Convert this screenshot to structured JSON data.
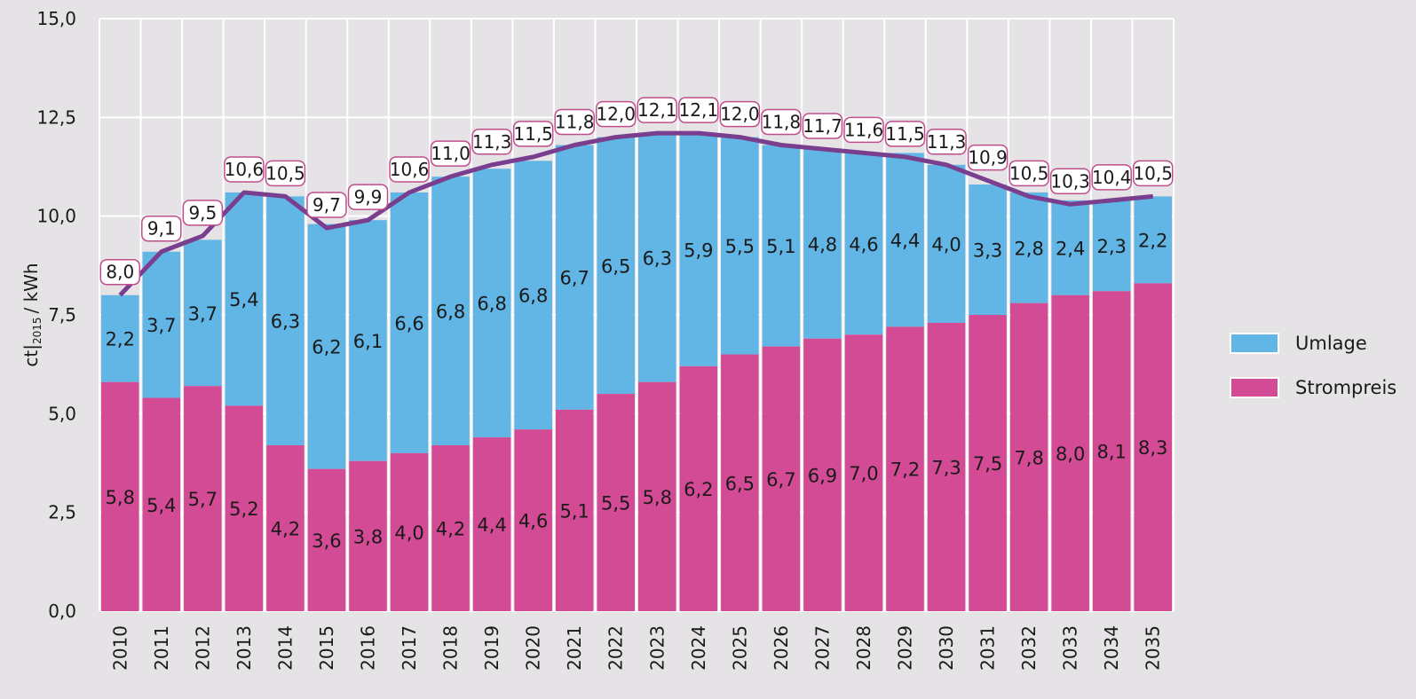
{
  "chart_data": {
    "type": "bar",
    "stacked": true,
    "ylabel": "ct|2015 / kWh",
    "ylabel_main": "ct|",
    "ylabel_sub": "2015",
    "ylabel_unit": "/ kWh",
    "ylim": [
      0,
      15
    ],
    "yticks": [
      "0,0",
      "2,5",
      "5,0",
      "7,5",
      "10,0",
      "12,5",
      "15,0"
    ],
    "categories": [
      "2010",
      "2011",
      "2012",
      "2013",
      "2014",
      "2015",
      "2016",
      "2017",
      "2018",
      "2019",
      "2020",
      "2021",
      "2022",
      "2023",
      "2024",
      "2025",
      "2026",
      "2027",
      "2028",
      "2029",
      "2030",
      "2031",
      "2032",
      "2033",
      "2034",
      "2035"
    ],
    "series": [
      {
        "name": "Strompreis",
        "color": "#d44b95",
        "values": [
          5.8,
          5.4,
          5.7,
          5.2,
          4.2,
          3.6,
          3.8,
          4.0,
          4.2,
          4.4,
          4.6,
          5.1,
          5.5,
          5.8,
          6.2,
          6.5,
          6.7,
          6.9,
          7.0,
          7.2,
          7.3,
          7.5,
          7.8,
          8.0,
          8.1,
          8.3
        ],
        "labels": [
          "5,8",
          "5,4",
          "5,7",
          "5,2",
          "4,2",
          "3,6",
          "3,8",
          "4,0",
          "4,2",
          "4,4",
          "4,6",
          "5,1",
          "5,5",
          "5,8",
          "6,2",
          "6,5",
          "6,7",
          "6,9",
          "7,0",
          "7,2",
          "7,3",
          "7,5",
          "7,8",
          "8,0",
          "8,1",
          "8,3"
        ]
      },
      {
        "name": "Umlage",
        "color": "#62b6e6",
        "values": [
          2.2,
          3.7,
          3.7,
          5.4,
          6.3,
          6.2,
          6.1,
          6.6,
          6.8,
          6.8,
          6.8,
          6.7,
          6.5,
          6.3,
          5.9,
          5.5,
          5.1,
          4.8,
          4.6,
          4.4,
          4.0,
          3.3,
          2.8,
          2.4,
          2.3,
          2.2
        ],
        "labels": [
          "2,2",
          "3,7",
          "3,7",
          "5,4",
          "6,3",
          "6,2",
          "6,1",
          "6,6",
          "6,8",
          "6,8",
          "6,8",
          "6,7",
          "6,5",
          "6,3",
          "5,9",
          "5,5",
          "5,1",
          "4,8",
          "4,6",
          "4,4",
          "4,0",
          "3,3",
          "2,8",
          "2,4",
          "2,3",
          "2,2"
        ]
      }
    ],
    "totals": {
      "color": "#7a3e8e",
      "values": [
        8.0,
        9.1,
        9.5,
        10.6,
        10.5,
        9.7,
        9.9,
        10.6,
        11.0,
        11.3,
        11.5,
        11.8,
        12.0,
        12.1,
        12.1,
        12.0,
        11.8,
        11.7,
        11.6,
        11.5,
        11.3,
        10.9,
        10.5,
        10.3,
        10.4,
        10.5
      ],
      "labels": [
        "8,0",
        "9,1",
        "9,5",
        "10,6",
        "10,5",
        "9,7",
        "9,9",
        "10,6",
        "11,0",
        "11,3",
        "11,5",
        "11,8",
        "12,0",
        "12,1",
        "12,1",
        "12,0",
        "11,8",
        "11,7",
        "11,6",
        "11,5",
        "11,3",
        "10,9",
        "10,5",
        "10,3",
        "10,4",
        "10,5"
      ]
    },
    "grid": true,
    "legend_position": "right"
  },
  "legend": {
    "items": [
      {
        "label": "Umlage",
        "color": "#62b6e6"
      },
      {
        "label": "Strompreis",
        "color": "#d44b95"
      }
    ]
  }
}
